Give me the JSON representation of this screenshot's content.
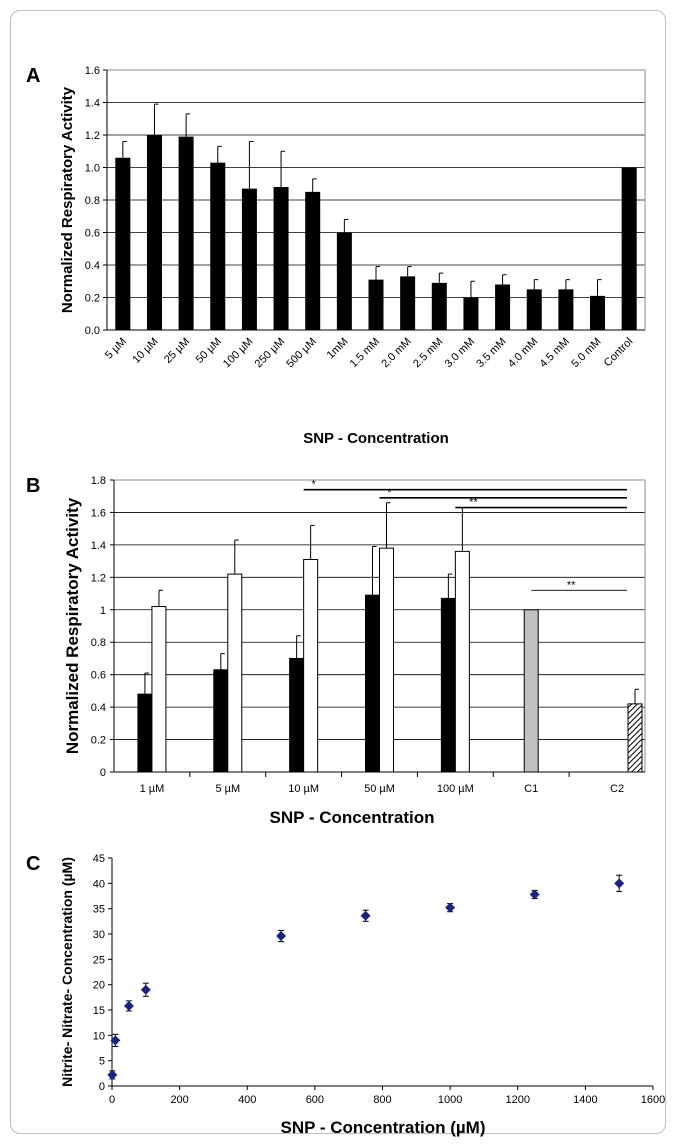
{
  "chart_data": [
    {
      "panel": "A",
      "type": "bar",
      "ylabel": "Normalized Respiratory Activity",
      "xlabel": "SNP - Concentration",
      "ylim": [
        0,
        1.6
      ],
      "yticks": [
        "0.0",
        "0.2",
        "0.4",
        "0.6",
        "0.8",
        "1.0",
        "1.2",
        "1.4",
        "1.6"
      ],
      "categories": [
        "5 µM",
        "10 µM",
        "25 µM",
        "50 µM",
        "100 µM",
        "250 µM",
        "500 µM",
        "1mM",
        "1.5 mM",
        "2.0 mM",
        "2.5 mM",
        "3.0 mM",
        "3.5 mM",
        "4.0 mM",
        "4.5 mM",
        "5.0 mM",
        "Control"
      ],
      "values": [
        1.06,
        1.2,
        1.19,
        1.03,
        0.87,
        0.88,
        0.85,
        0.6,
        0.31,
        0.33,
        0.29,
        0.2,
        0.28,
        0.25,
        0.25,
        0.21,
        1.0
      ],
      "errors": [
        0.1,
        0.19,
        0.14,
        0.1,
        0.29,
        0.22,
        0.08,
        0.08,
        0.08,
        0.06,
        0.06,
        0.1,
        0.06,
        0.06,
        0.06,
        0.1,
        0
      ],
      "grid": true,
      "bar_color": "#000000"
    },
    {
      "panel": "B",
      "type": "bar",
      "ylabel": "Normalized Respiratory Activity",
      "xlabel": "SNP - Concentration",
      "ylim": [
        0,
        1.8
      ],
      "yticks": [
        "0",
        "0.2",
        "0.4",
        "0.6",
        "0.8",
        "1",
        "1.2",
        "1.4",
        "1.6",
        "1.8"
      ],
      "categories": [
        "1 µM",
        "5 µM",
        "10 µM",
        "50 µM",
        "100 µM",
        "C1",
        "C2"
      ],
      "series": [
        {
          "values": [
            0.48,
            0.63,
            0.7,
            1.09,
            1.07,
            null,
            null
          ],
          "errors": [
            0.13,
            0.1,
            0.14,
            0.3,
            0.15,
            null,
            null
          ],
          "color": "#000000"
        },
        {
          "values": [
            1.02,
            1.22,
            1.31,
            1.38,
            1.36,
            null,
            null
          ],
          "errors": [
            0.1,
            0.21,
            0.21,
            0.28,
            0.27,
            null,
            null
          ],
          "color": "#ffffff"
        },
        {
          "values": [
            null,
            null,
            null,
            null,
            null,
            1.0,
            null
          ],
          "errors": [
            null,
            null,
            null,
            null,
            null,
            0,
            null
          ],
          "color": "#c0c0c0"
        },
        {
          "values": [
            null,
            null,
            null,
            null,
            null,
            null,
            0.42
          ],
          "errors": [
            null,
            null,
            null,
            null,
            null,
            null,
            0.09
          ],
          "color": "hatched"
        }
      ],
      "annotations": [
        {
          "label": "*",
          "from": "10 µM",
          "to": "C2",
          "y": 1.74
        },
        {
          "label": "*",
          "from": "50 µM",
          "to": "C2",
          "y": 1.69
        },
        {
          "label": "**",
          "from": "100 µM",
          "to": "C2",
          "y": 1.63
        },
        {
          "label": "**",
          "from": "C1",
          "to": "C2",
          "y": 1.12
        }
      ],
      "grid": true
    },
    {
      "panel": "C",
      "type": "scatter",
      "ylabel": "Nitrite- Nitrate- Concentration (µM)",
      "xlabel": "SNP - Concentration (µM)",
      "xlim": [
        0,
        1600
      ],
      "ylim": [
        0,
        45
      ],
      "xticks": [
        0,
        200,
        400,
        600,
        800,
        1000,
        1200,
        1400,
        1600
      ],
      "yticks": [
        0,
        5,
        10,
        15,
        20,
        25,
        30,
        35,
        40,
        45
      ],
      "points": [
        {
          "x": 1,
          "y": 2.2,
          "err": 0.8
        },
        {
          "x": 10,
          "y": 9.0,
          "err": 1.2
        },
        {
          "x": 50,
          "y": 15.8,
          "err": 1.0
        },
        {
          "x": 100,
          "y": 19.0,
          "err": 1.3
        },
        {
          "x": 500,
          "y": 29.6,
          "err": 1.1
        },
        {
          "x": 750,
          "y": 33.6,
          "err": 1.1
        },
        {
          "x": 1000,
          "y": 35.2,
          "err": 0.8
        },
        {
          "x": 1250,
          "y": 37.8,
          "err": 0.8
        },
        {
          "x": 1500,
          "y": 40.0,
          "err": 1.6
        }
      ],
      "marker_color": "#1a237e"
    }
  ]
}
